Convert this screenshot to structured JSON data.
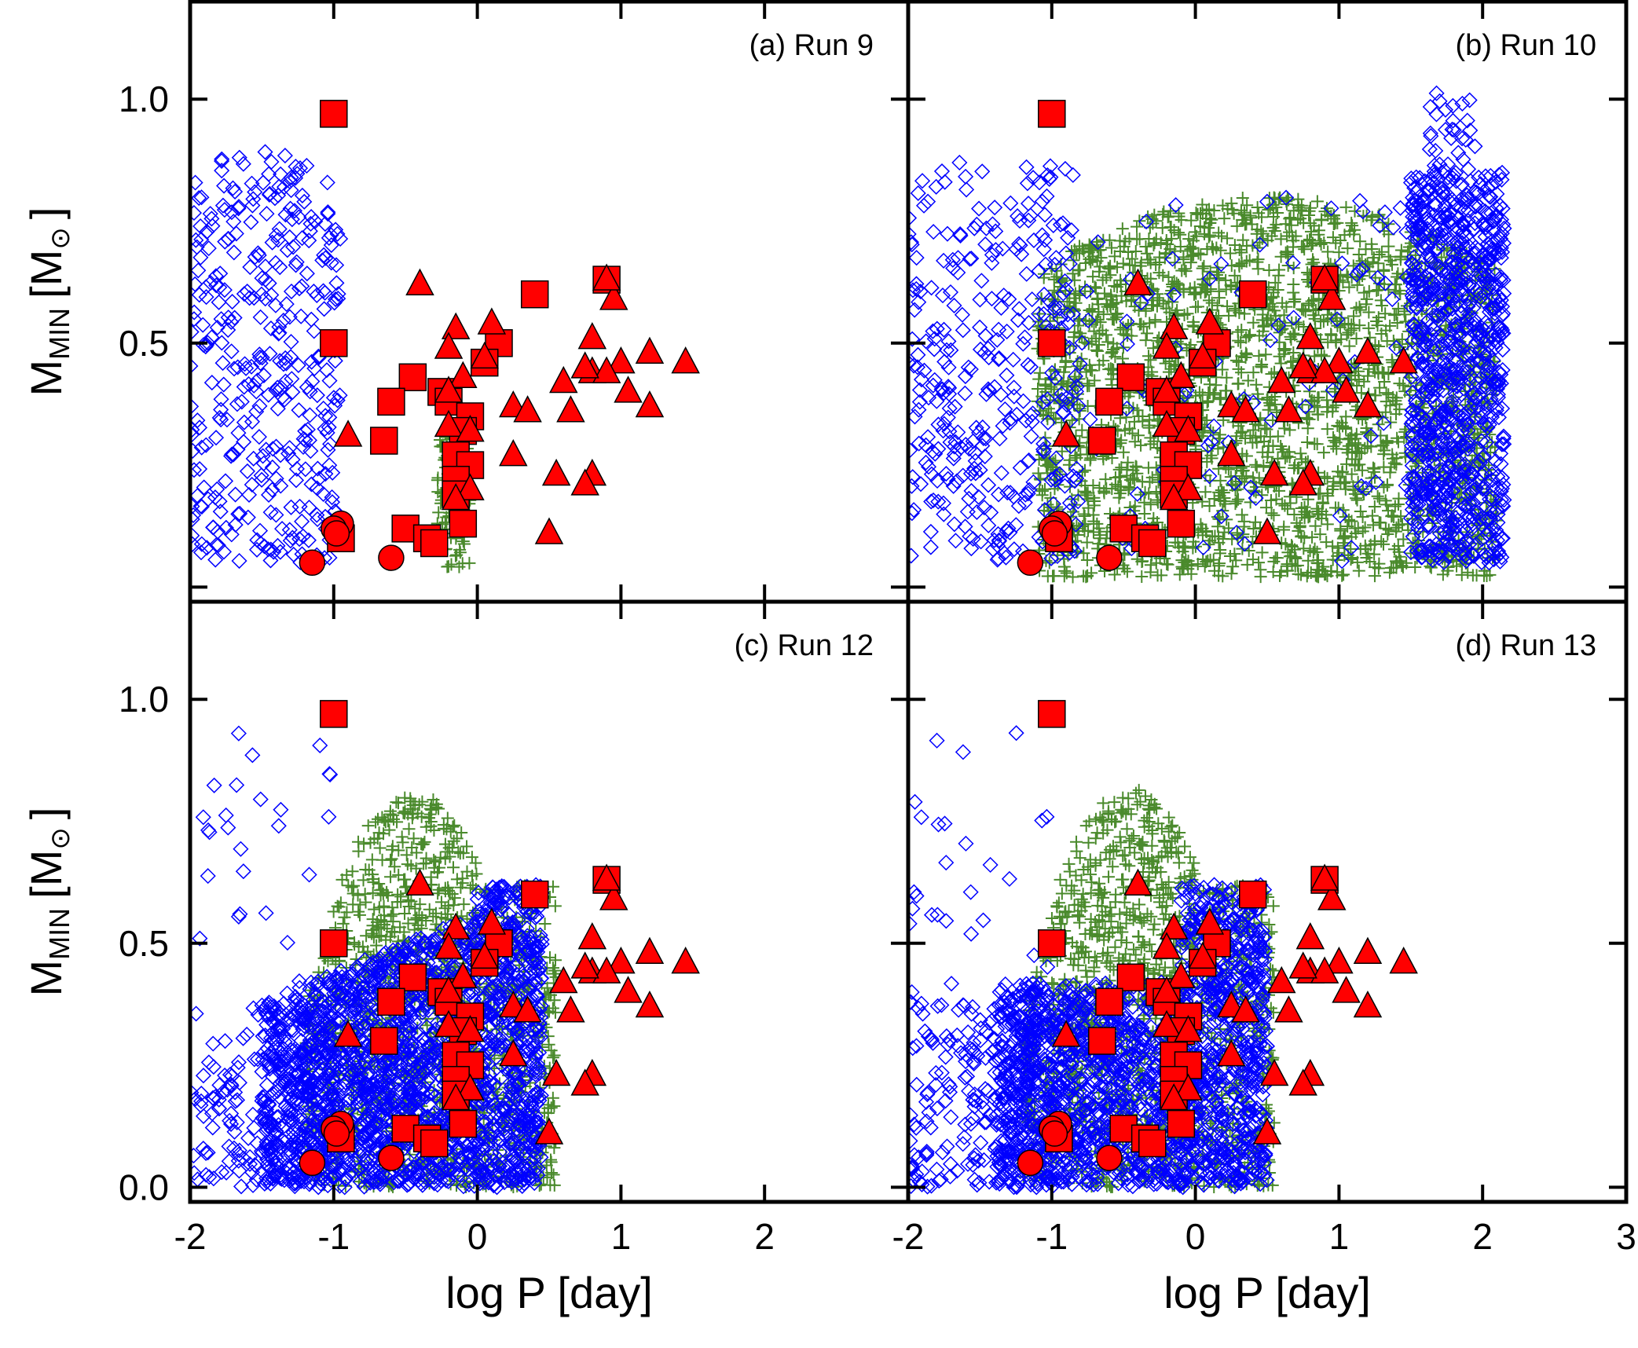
{
  "chart_data": {
    "type": "scatter",
    "layout": "2x2 grid, shared axes",
    "xlabel": "log P [day]",
    "ylabel": "M_MIN [M⊙]",
    "ylabel_main": "M",
    "ylabel_sub": "MIN",
    "ylabel_unit": "[M",
    "ylabel_close": "]",
    "ylabel_sun_symbol": "⊙",
    "xlim_left": [
      -2,
      3
    ],
    "xlim_right": [
      -2,
      3
    ],
    "ylim": [
      -0.03,
      1.2
    ],
    "x_ticks_left": [
      -2,
      -1,
      0,
      1,
      2
    ],
    "x_tick_labels_left": [
      "-2",
      "-1",
      "0",
      "1",
      "2"
    ],
    "x_ticks_right": [
      -2,
      -1,
      0,
      1,
      2,
      3
    ],
    "x_tick_labels_right": [
      "-2",
      "-1",
      "0",
      "1",
      "2",
      "3"
    ],
    "y_ticks_top": [
      0.5,
      1.0
    ],
    "y_tick_labels_top": [
      "0.5",
      "1.0"
    ],
    "y_ticks_bottom": [
      0.0,
      0.5,
      1.0
    ],
    "y_tick_labels_bottom": [
      "0.0",
      "0.5",
      "1.0"
    ],
    "colors": {
      "observed": "#ff0000",
      "observed_edge": "#000000",
      "diamonds": "#0000ff",
      "plus": "#4a8a2c"
    },
    "panels": [
      {
        "label": "(a) Run 9",
        "blue_region": "diamonds_left_strip",
        "green_region": "small_band"
      },
      {
        "label": "(b) Run 10",
        "blue_region": "diamonds_wide",
        "green_region": "wide_dome"
      },
      {
        "label": "(c) Run 12",
        "blue_region": "wedge_blue",
        "green_region": "dome_left"
      },
      {
        "label": "(d) Run 13",
        "blue_region": "wedge_blue_narrow",
        "green_region": "dome_left"
      }
    ],
    "observed_series": [
      {
        "name": "",
        "marker": "square",
        "points": [
          [
            -1.0,
            0.97
          ],
          [
            -1.0,
            0.5
          ],
          [
            0.9,
            0.63
          ],
          [
            0.4,
            0.6
          ],
          [
            0.15,
            0.5
          ],
          [
            0.05,
            0.46
          ],
          [
            -0.45,
            0.43
          ],
          [
            -0.6,
            0.38
          ],
          [
            -0.25,
            0.4
          ],
          [
            -0.2,
            0.38
          ],
          [
            -0.05,
            0.35
          ],
          [
            -0.1,
            0.32
          ],
          [
            -0.65,
            0.3
          ],
          [
            -0.15,
            0.27
          ],
          [
            -0.05,
            0.25
          ],
          [
            -0.15,
            0.22
          ],
          [
            -0.15,
            0.19
          ],
          [
            -0.1,
            0.13
          ],
          [
            -0.5,
            0.12
          ],
          [
            -0.35,
            0.1
          ],
          [
            -0.3,
            0.09
          ],
          [
            -0.95,
            0.1
          ]
        ]
      },
      {
        "name": "",
        "marker": "triangle",
        "points": [
          [
            -0.4,
            0.62
          ],
          [
            0.95,
            0.59
          ],
          [
            0.9,
            0.63
          ],
          [
            -0.15,
            0.53
          ],
          [
            0.1,
            0.54
          ],
          [
            0.8,
            0.51
          ],
          [
            -0.2,
            0.49
          ],
          [
            0.05,
            0.47
          ],
          [
            1.0,
            0.46
          ],
          [
            1.2,
            0.48
          ],
          [
            1.45,
            0.46
          ],
          [
            0.8,
            0.44
          ],
          [
            0.9,
            0.44
          ],
          [
            0.6,
            0.42
          ],
          [
            0.75,
            0.45
          ],
          [
            -0.1,
            0.43
          ],
          [
            -0.2,
            0.4
          ],
          [
            1.05,
            0.4
          ],
          [
            0.25,
            0.37
          ],
          [
            0.35,
            0.36
          ],
          [
            0.65,
            0.36
          ],
          [
            1.2,
            0.37
          ],
          [
            -0.2,
            0.33
          ],
          [
            -0.05,
            0.32
          ],
          [
            -0.9,
            0.31
          ],
          [
            0.25,
            0.27
          ],
          [
            0.55,
            0.23
          ],
          [
            0.8,
            0.23
          ],
          [
            0.75,
            0.21
          ],
          [
            -0.05,
            0.2
          ],
          [
            -0.15,
            0.18
          ],
          [
            0.5,
            0.11
          ]
        ]
      },
      {
        "name": "",
        "marker": "circle",
        "points": [
          [
            -0.95,
            0.13
          ],
          [
            -1.0,
            0.12
          ],
          [
            -0.98,
            0.11
          ],
          [
            -1.15,
            0.05
          ],
          [
            -0.6,
            0.06
          ]
        ]
      }
    ]
  }
}
